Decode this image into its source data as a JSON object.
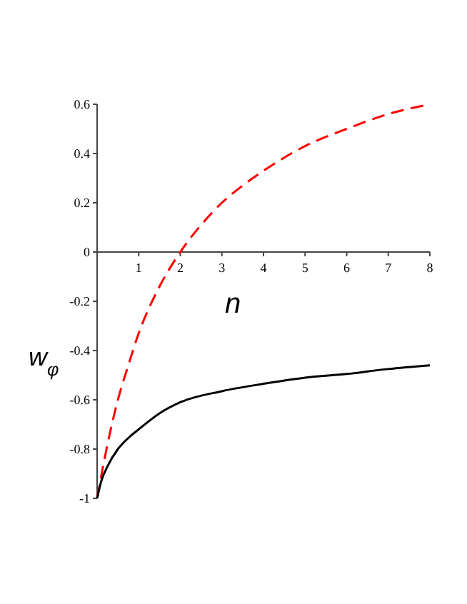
{
  "chart_data": {
    "type": "line",
    "xlabel": "n",
    "ylabel": "w$_{φ}$",
    "xlim": [
      0,
      8
    ],
    "ylim": [
      -1,
      0.6
    ],
    "xticks": [
      1,
      2,
      3,
      4,
      5,
      6,
      7,
      8
    ],
    "yticks": [
      -1,
      -0.8,
      -0.6,
      -0.4,
      -0.2,
      0,
      0.2,
      0.4,
      0.6
    ],
    "marker": "none",
    "series": [
      {
        "color": "#ff0000",
        "line_style": "dashed",
        "x": [
          0,
          0.25,
          0.5,
          0.75,
          1,
          1.5,
          2,
          2.5,
          3,
          3.5,
          4,
          5,
          6,
          7,
          8
        ],
        "values": [
          -1,
          -0.78,
          -0.6,
          -0.46,
          -0.33,
          -0.14,
          0,
          0.11,
          0.2,
          0.27,
          0.33,
          0.43,
          0.5,
          0.56,
          0.6
        ]
      },
      {
        "color": "#000000",
        "line_style": "solid",
        "x": [
          0,
          0.1,
          0.25,
          0.5,
          0.75,
          1,
          1.5,
          2,
          3,
          4,
          5,
          6,
          7,
          8
        ],
        "values": [
          -1,
          -0.93,
          -0.87,
          -0.8,
          -0.755,
          -0.72,
          -0.655,
          -0.61,
          -0.565,
          -0.535,
          -0.51,
          -0.495,
          -0.475,
          -0.46
        ]
      }
    ]
  }
}
